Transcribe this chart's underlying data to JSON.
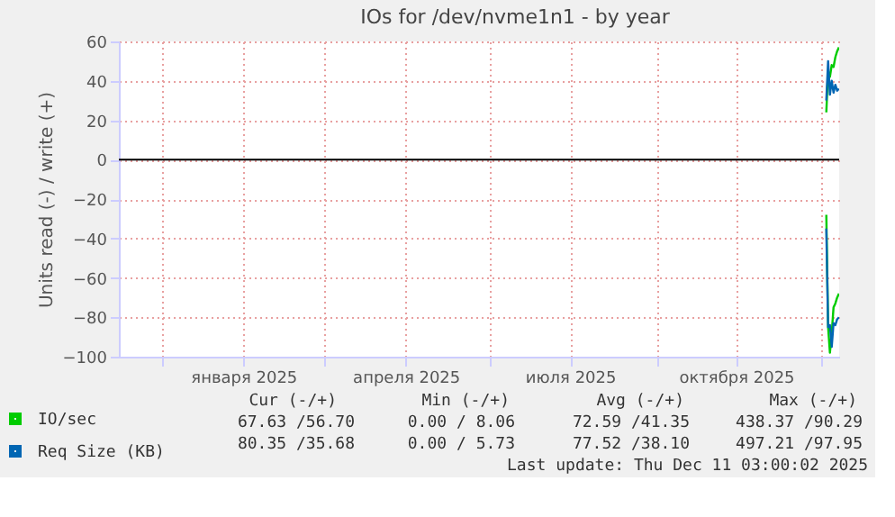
{
  "chart_data": {
    "type": "line",
    "title": "IOs for /dev/nvme1n1 - by year",
    "ylabel": "Units read (-) / write (+)",
    "x": [
      "2025-12-04",
      "2025-12-05",
      "2025-12-06",
      "2025-12-07",
      "2025-12-08",
      "2025-12-09",
      "2025-12-10",
      "2025-12-11"
    ],
    "series": [
      {
        "name": "IO/sec",
        "color": "#00cc00",
        "values": [
          24,
          45,
          42,
          48,
          47,
          52,
          55,
          57
        ]
      },
      {
        "name": "Req Size (KB)",
        "color": "#0066b3",
        "values": [
          30,
          50,
          33,
          40,
          34,
          38,
          35,
          36
        ]
      },
      {
        "color": "#00cc00",
        "values": [
          -28,
          -85,
          -98,
          -88,
          -75,
          -73,
          -70,
          -68
        ]
      },
      {
        "color": "#0066b3",
        "values": [
          -35,
          -85,
          -84,
          -95,
          -83,
          -84,
          -81,
          -80
        ]
      }
    ],
    "xlim": [
      "2024-11-07",
      "2025-12-11T03:00"
    ],
    "xticks": [
      {
        "value": "2024-12-01",
        "label": null
      },
      {
        "value": "2025-01-15",
        "label": "января 2025"
      },
      {
        "value": "2025-03-01",
        "label": null
      },
      {
        "value": "2025-04-15",
        "label": "апреля 2025"
      },
      {
        "value": "2025-06-01",
        "label": null
      },
      {
        "value": "2025-07-15",
        "label": "июля 2025"
      },
      {
        "value": "2025-09-01",
        "label": null
      },
      {
        "value": "2025-10-15",
        "label": "октября 2025"
      },
      {
        "value": "2025-12-01",
        "label": null
      }
    ],
    "ylim": [
      -100,
      60
    ],
    "yticks": [
      -100,
      -80,
      -60,
      -40,
      -20,
      0,
      20,
      40,
      60
    ],
    "grid": true,
    "legend": "bottom left",
    "ref_lines": [
      {
        "axis": "y",
        "value": 0,
        "color": "#000000"
      }
    ],
    "annotations": [
      "Cur (-/+)",
      "Min (-/+)",
      "Avg (-/+)",
      "Max (-/+)",
      "67.63 /56.70",
      "0.00 / 8.06",
      "72.59 /41.35",
      "438.37 /90.29",
      "80.35 /35.68",
      "0.00 / 5.73",
      "77.52 /38.10",
      "497.21 /97.95",
      "Last update: Thu Dec 11 03:00:02 2025"
    ]
  }
}
